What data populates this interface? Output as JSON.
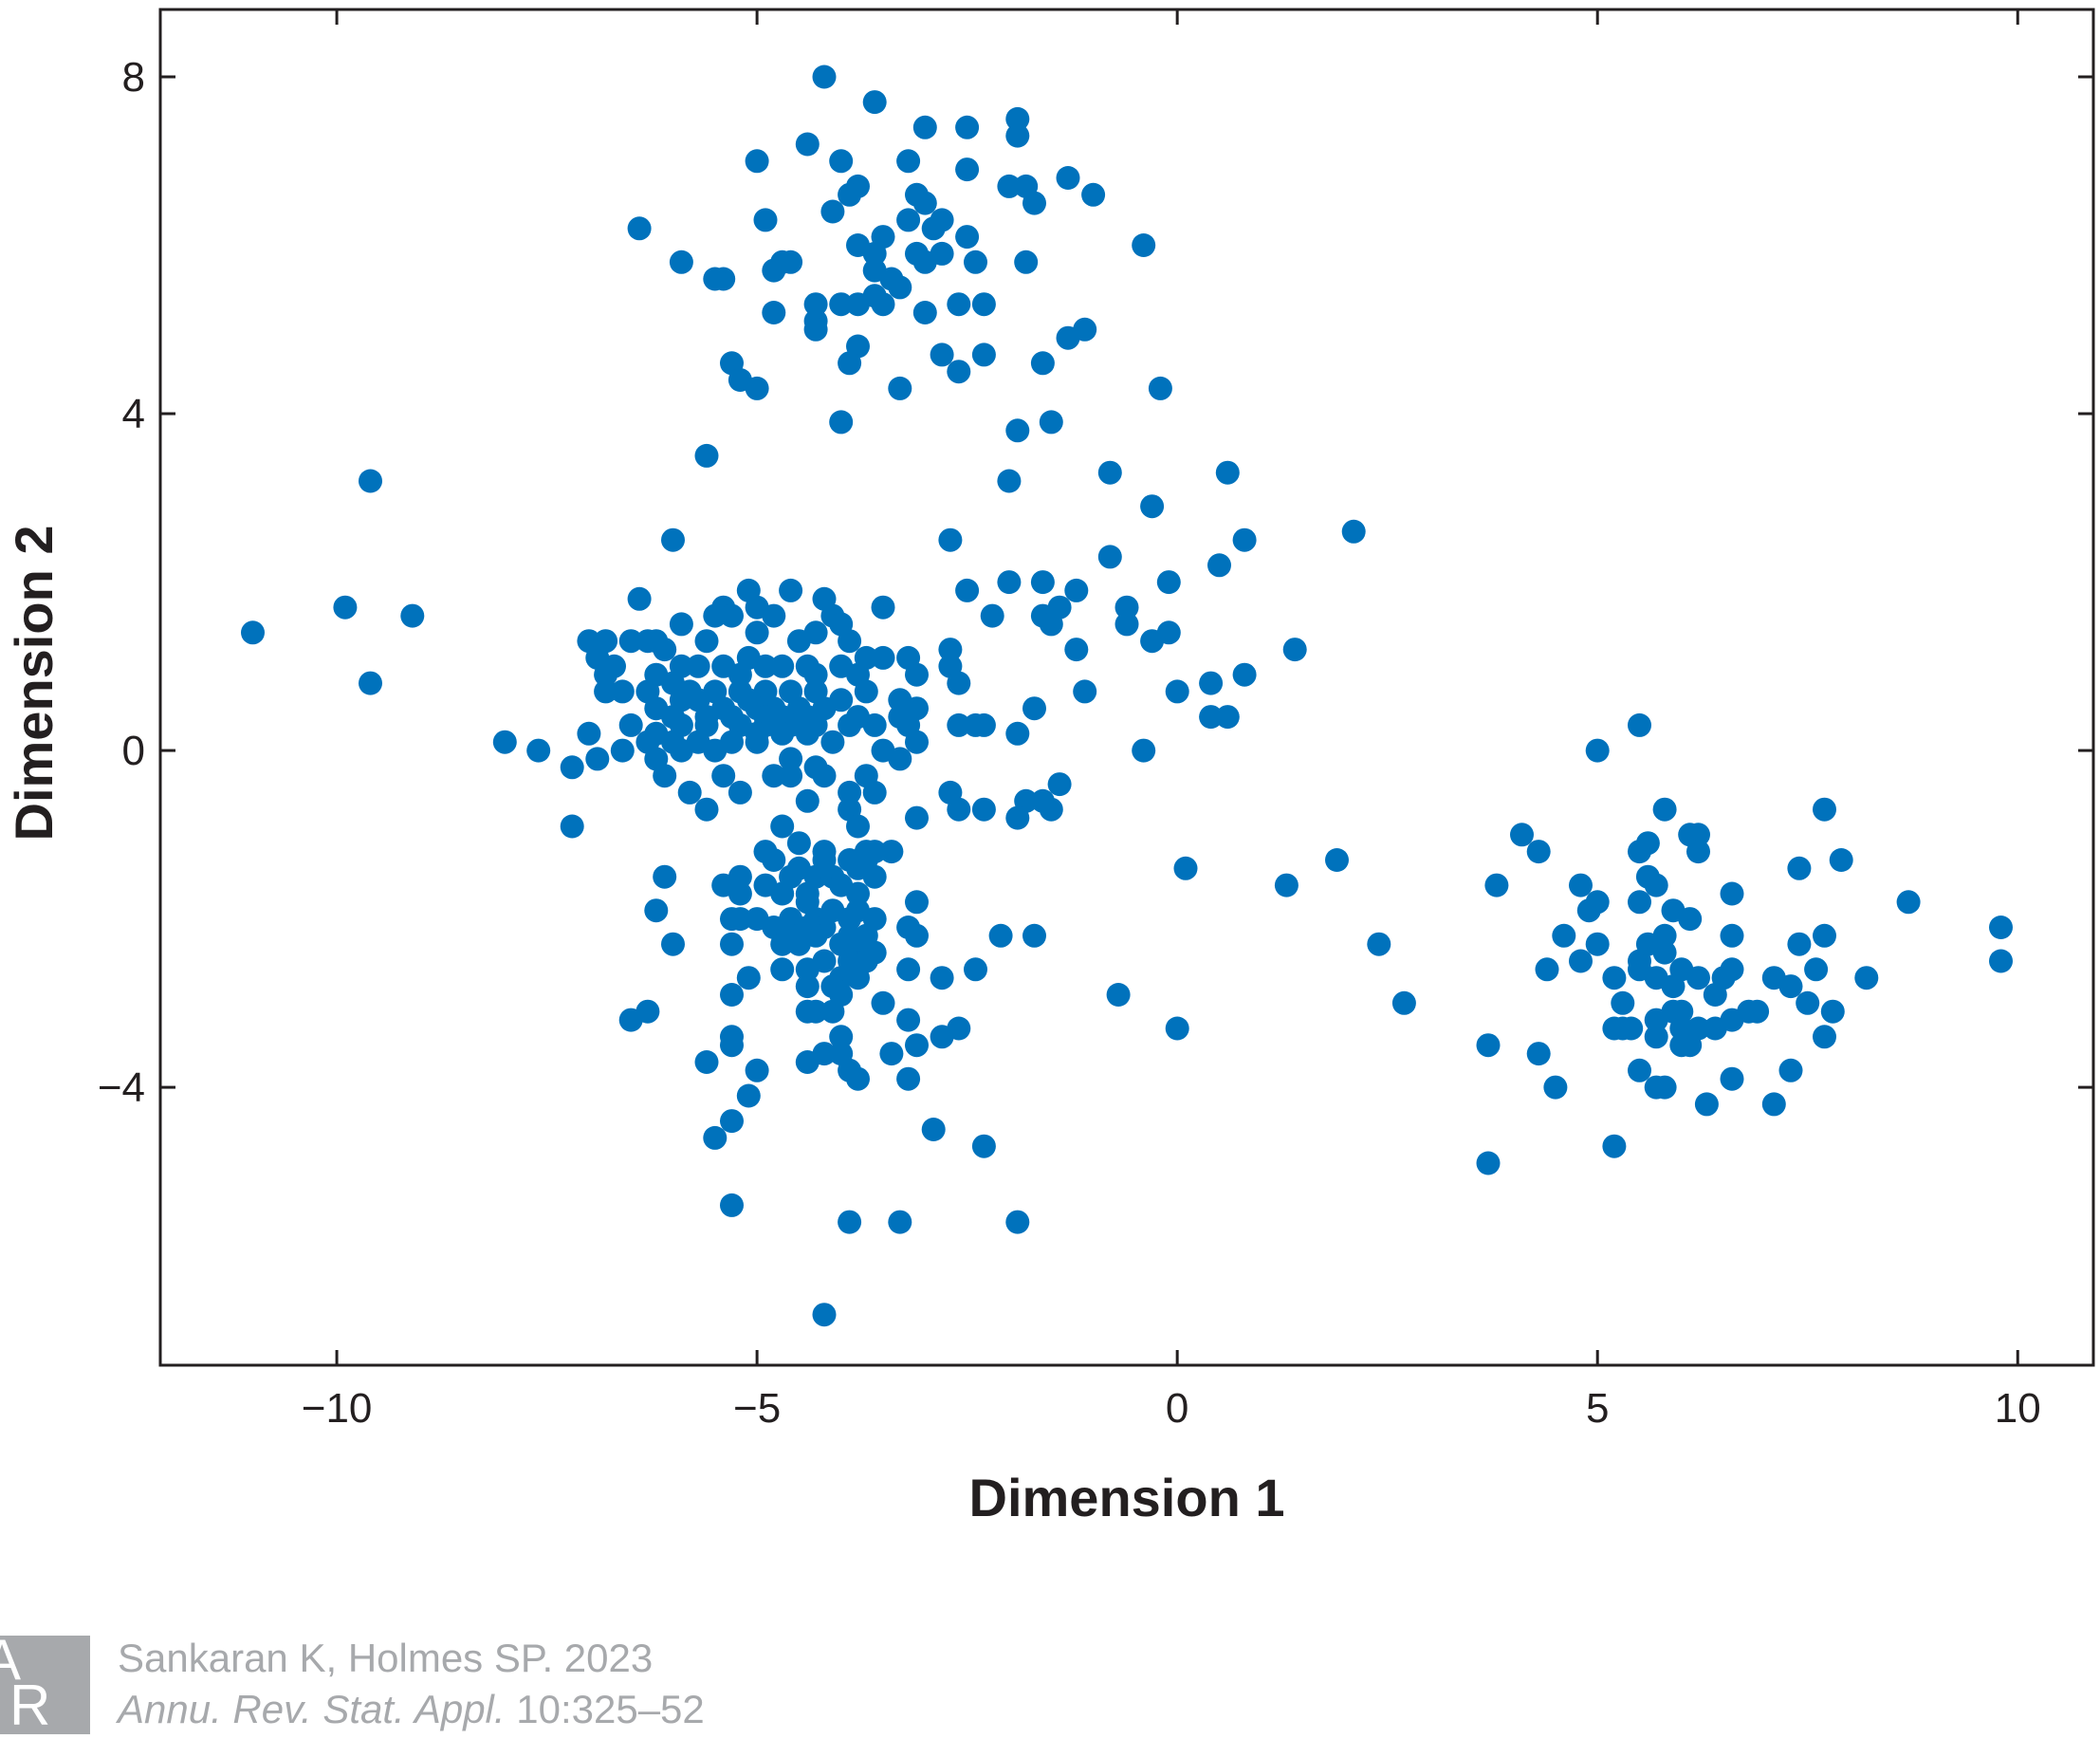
{
  "chart_data": {
    "type": "scatter",
    "title": "",
    "xlabel": "Dimension 1",
    "ylabel": "Dimension 2",
    "xlim": [
      -12.1,
      10.9
    ],
    "ylim": [
      -7.3,
      8.8
    ],
    "xticks": [
      -10,
      -5,
      0,
      5,
      10
    ],
    "yticks": [
      -4,
      0,
      4,
      8
    ],
    "xtick_labels": [
      "−10",
      "−5",
      "0",
      "5",
      "10"
    ],
    "ytick_labels": [
      "−4",
      "0",
      "4",
      "8"
    ],
    "grid": false,
    "legend": null,
    "marker_color": "#0072bc",
    "points": [
      [
        -4.2,
        8.0
      ],
      [
        -3.6,
        7.7
      ],
      [
        -3.0,
        7.4
      ],
      [
        -2.5,
        7.4
      ],
      [
        -1.9,
        7.5
      ],
      [
        -1.9,
        7.3
      ],
      [
        -4.4,
        7.2
      ],
      [
        -5.0,
        7.0
      ],
      [
        -4.0,
        7.0
      ],
      [
        -3.2,
        7.0
      ],
      [
        -2.5,
        6.9
      ],
      [
        -2.0,
        6.7
      ],
      [
        -1.8,
        6.7
      ],
      [
        -1.3,
        6.8
      ],
      [
        -1.0,
        6.6
      ],
      [
        -3.8,
        6.7
      ],
      [
        -3.9,
        6.6
      ],
      [
        -3.1,
        6.6
      ],
      [
        -3.0,
        6.5
      ],
      [
        -1.7,
        6.5
      ],
      [
        -4.1,
        6.4
      ],
      [
        -6.4,
        6.2
      ],
      [
        -4.9,
        6.3
      ],
      [
        -3.2,
        6.3
      ],
      [
        -2.8,
        6.3
      ],
      [
        -2.9,
        6.2
      ],
      [
        -2.5,
        6.1
      ],
      [
        -3.5,
        6.1
      ],
      [
        -3.8,
        6.0
      ],
      [
        -3.6,
        5.9
      ],
      [
        -3.1,
        5.9
      ],
      [
        -2.8,
        5.9
      ],
      [
        -3.0,
        5.8
      ],
      [
        -0.4,
        6.0
      ],
      [
        -5.9,
        5.8
      ],
      [
        -4.6,
        5.8
      ],
      [
        -4.7,
        5.8
      ],
      [
        -4.8,
        5.7
      ],
      [
        -3.6,
        5.7
      ],
      [
        -3.4,
        5.6
      ],
      [
        -2.4,
        5.8
      ],
      [
        -1.8,
        5.8
      ],
      [
        -5.4,
        5.6
      ],
      [
        -5.5,
        5.6
      ],
      [
        -3.3,
        5.5
      ],
      [
        -3.6,
        5.4
      ],
      [
        -4.3,
        5.3
      ],
      [
        -4.0,
        5.3
      ],
      [
        -3.8,
        5.3
      ],
      [
        -3.5,
        5.3
      ],
      [
        -2.6,
        5.3
      ],
      [
        -2.3,
        5.3
      ],
      [
        -4.8,
        5.2
      ],
      [
        -3.0,
        5.2
      ],
      [
        -4.3,
        5.1
      ],
      [
        -4.3,
        5.0
      ],
      [
        -1.3,
        4.9
      ],
      [
        -1.1,
        5.0
      ],
      [
        -3.8,
        4.8
      ],
      [
        -2.8,
        4.7
      ],
      [
        -2.3,
        4.7
      ],
      [
        -3.9,
        4.6
      ],
      [
        -5.3,
        4.6
      ],
      [
        -2.6,
        4.5
      ],
      [
        -1.6,
        4.6
      ],
      [
        -5.2,
        4.4
      ],
      [
        -5.0,
        4.3
      ],
      [
        -3.3,
        4.3
      ],
      [
        -0.2,
        4.3
      ],
      [
        -4.0,
        3.9
      ],
      [
        -1.9,
        3.8
      ],
      [
        -1.5,
        3.9
      ],
      [
        -5.6,
        3.5
      ],
      [
        -2.0,
        3.2
      ],
      [
        -0.8,
        3.3
      ],
      [
        0.6,
        3.3
      ],
      [
        -0.3,
        2.9
      ],
      [
        -9.6,
        3.2
      ],
      [
        -11.0,
        1.4
      ],
      [
        -9.9,
        1.7
      ],
      [
        -9.1,
        1.6
      ],
      [
        -9.6,
        0.8
      ],
      [
        -6.0,
        2.5
      ],
      [
        -2.7,
        2.5
      ],
      [
        -0.8,
        2.3
      ],
      [
        0.5,
        2.2
      ],
      [
        0.8,
        2.5
      ],
      [
        2.1,
        2.6
      ],
      [
        -6.4,
        1.8
      ],
      [
        -5.4,
        1.7
      ],
      [
        -5.3,
        1.6
      ],
      [
        -5.5,
        1.6
      ],
      [
        -5.1,
        1.9
      ],
      [
        -5.0,
        1.7
      ],
      [
        -4.6,
        1.9
      ],
      [
        -4.2,
        1.8
      ],
      [
        -4.1,
        1.6
      ],
      [
        -4.0,
        1.5
      ],
      [
        -3.5,
        1.7
      ],
      [
        -4.8,
        1.6
      ],
      [
        -5.9,
        1.5
      ],
      [
        -6.3,
        1.3
      ],
      [
        -6.2,
        1.3
      ],
      [
        -6.1,
        1.2
      ],
      [
        -6.5,
        1.3
      ],
      [
        -6.8,
        1.3
      ],
      [
        -7.0,
        1.3
      ],
      [
        -5.6,
        1.3
      ],
      [
        -5.0,
        1.4
      ],
      [
        -4.5,
        1.3
      ],
      [
        -4.3,
        1.4
      ],
      [
        -3.9,
        1.3
      ],
      [
        -2.7,
        1.2
      ],
      [
        -2.0,
        2.0
      ],
      [
        -1.6,
        2.0
      ],
      [
        -2.5,
        1.9
      ],
      [
        -1.2,
        1.9
      ],
      [
        -1.6,
        1.6
      ],
      [
        -1.4,
        1.7
      ],
      [
        -2.2,
        1.6
      ],
      [
        -1.5,
        1.5
      ],
      [
        -0.6,
        1.7
      ],
      [
        -0.6,
        1.5
      ],
      [
        -0.1,
        2.0
      ],
      [
        -0.3,
        1.3
      ],
      [
        -0.1,
        1.4
      ],
      [
        -1.2,
        1.2
      ],
      [
        1.4,
        1.2
      ],
      [
        -6.9,
        1.1
      ],
      [
        -6.7,
        1.0
      ],
      [
        -6.8,
        0.9
      ],
      [
        -6.2,
        0.9
      ],
      [
        -5.9,
        1.0
      ],
      [
        -5.7,
        1.0
      ],
      [
        -5.4,
        1.0
      ],
      [
        -5.1,
        1.1
      ],
      [
        -4.9,
        1.0
      ],
      [
        -4.7,
        1.0
      ],
      [
        -4.4,
        1.0
      ],
      [
        -4.0,
        1.0
      ],
      [
        -3.7,
        1.1
      ],
      [
        -3.5,
        1.1
      ],
      [
        -3.2,
        1.1
      ],
      [
        -2.7,
        1.0
      ],
      [
        -3.1,
        0.9
      ],
      [
        -2.6,
        0.8
      ],
      [
        -3.8,
        0.9
      ],
      [
        -4.3,
        0.9
      ],
      [
        -5.2,
        0.9
      ],
      [
        -6.0,
        0.8
      ],
      [
        -6.3,
        0.7
      ],
      [
        -6.6,
        0.7
      ],
      [
        -6.8,
        0.7
      ],
      [
        -5.8,
        0.7
      ],
      [
        -5.5,
        0.7
      ],
      [
        -5.2,
        0.7
      ],
      [
        -4.9,
        0.7
      ],
      [
        -4.6,
        0.7
      ],
      [
        -4.3,
        0.7
      ],
      [
        -4.0,
        0.6
      ],
      [
        -3.7,
        0.7
      ],
      [
        -3.3,
        0.6
      ],
      [
        -5.9,
        0.6
      ],
      [
        -5.7,
        0.6
      ],
      [
        -5.4,
        0.5
      ],
      [
        -5.1,
        0.6
      ],
      [
        -4.8,
        0.5
      ],
      [
        -4.5,
        0.5
      ],
      [
        -4.2,
        0.5
      ],
      [
        -3.1,
        0.5
      ],
      [
        -6.2,
        0.5
      ],
      [
        -5.0,
        0.5
      ],
      [
        -5.6,
        0.4
      ],
      [
        -4.9,
        0.4
      ],
      [
        -4.7,
        0.4
      ],
      [
        -4.4,
        0.4
      ],
      [
        -3.8,
        0.4
      ],
      [
        -3.3,
        0.4
      ],
      [
        -6.0,
        0.4
      ],
      [
        -5.3,
        0.4
      ],
      [
        -6.5,
        0.3
      ],
      [
        -6.2,
        0.2
      ],
      [
        -5.9,
        0.3
      ],
      [
        -5.6,
        0.3
      ],
      [
        -5.2,
        0.3
      ],
      [
        -4.9,
        0.3
      ],
      [
        -4.6,
        0.3
      ],
      [
        -4.3,
        0.3
      ],
      [
        -3.9,
        0.3
      ],
      [
        -3.6,
        0.3
      ],
      [
        -3.2,
        0.3
      ],
      [
        -2.6,
        0.3
      ],
      [
        -2.4,
        0.3
      ],
      [
        -2.3,
        0.3
      ],
      [
        -1.7,
        0.5
      ],
      [
        -1.1,
        0.7
      ],
      [
        0.0,
        0.7
      ],
      [
        0.4,
        0.8
      ],
      [
        0.8,
        0.9
      ],
      [
        0.4,
        0.4
      ],
      [
        0.6,
        0.4
      ],
      [
        -7.0,
        0.2
      ],
      [
        -6.6,
        0.0
      ],
      [
        -6.3,
        0.1
      ],
      [
        -6.0,
        0.1
      ],
      [
        -5.7,
        0.1
      ],
      [
        -5.3,
        0.1
      ],
      [
        -5.0,
        0.2
      ],
      [
        -4.7,
        0.2
      ],
      [
        -4.4,
        0.2
      ],
      [
        -4.1,
        0.1
      ],
      [
        -3.1,
        0.1
      ],
      [
        -1.9,
        0.2
      ],
      [
        -0.4,
        0.0
      ],
      [
        -6.9,
        -0.1
      ],
      [
        -6.2,
        -0.1
      ],
      [
        -5.9,
        0.0
      ],
      [
        -5.5,
        0.0
      ],
      [
        -5.0,
        0.1
      ],
      [
        -4.6,
        -0.1
      ],
      [
        -4.3,
        -0.2
      ],
      [
        -3.5,
        0.0
      ],
      [
        -3.3,
        -0.1
      ],
      [
        -8.0,
        0.1
      ],
      [
        -7.6,
        0.0
      ],
      [
        -7.2,
        -0.2
      ],
      [
        -6.1,
        -0.3
      ],
      [
        -5.4,
        -0.3
      ],
      [
        -4.8,
        -0.3
      ],
      [
        -4.6,
        -0.3
      ],
      [
        -4.2,
        -0.3
      ],
      [
        -3.7,
        -0.3
      ],
      [
        -5.8,
        -0.5
      ],
      [
        -5.2,
        -0.5
      ],
      [
        -3.9,
        -0.5
      ],
      [
        -3.6,
        -0.5
      ],
      [
        -2.7,
        -0.5
      ],
      [
        -1.4,
        -0.4
      ],
      [
        -5.6,
        -0.7
      ],
      [
        -4.4,
        -0.6
      ],
      [
        -3.9,
        -0.7
      ],
      [
        -2.6,
        -0.7
      ],
      [
        -2.3,
        -0.7
      ],
      [
        -1.8,
        -0.6
      ],
      [
        -1.6,
        -0.6
      ],
      [
        -1.5,
        -0.7
      ],
      [
        -7.2,
        -0.9
      ],
      [
        -4.7,
        -0.9
      ],
      [
        -3.8,
        -0.9
      ],
      [
        -3.1,
        -0.8
      ],
      [
        -1.9,
        -0.8
      ],
      [
        -4.5,
        -1.1
      ],
      [
        -4.2,
        -1.2
      ],
      [
        -3.7,
        -1.2
      ],
      [
        -3.6,
        -1.2
      ],
      [
        -3.4,
        -1.2
      ],
      [
        -4.9,
        -1.2
      ],
      [
        -4.8,
        -1.3
      ],
      [
        -4.2,
        -1.3
      ],
      [
        -3.9,
        -1.3
      ],
      [
        -3.7,
        -1.3
      ],
      [
        -4.5,
        -1.4
      ],
      [
        -3.8,
        -1.4
      ],
      [
        -6.1,
        -1.5
      ],
      [
        -5.2,
        -1.5
      ],
      [
        -4.9,
        -1.6
      ],
      [
        -4.6,
        -1.5
      ],
      [
        -4.3,
        -1.5
      ],
      [
        -4.1,
        -1.5
      ],
      [
        -3.6,
        -1.5
      ],
      [
        -5.4,
        -1.6
      ],
      [
        -5.2,
        -1.7
      ],
      [
        -4.7,
        -1.7
      ],
      [
        -4.4,
        -1.7
      ],
      [
        -4.0,
        -1.6
      ],
      [
        -3.8,
        -1.7
      ],
      [
        0.1,
        -1.4
      ],
      [
        1.3,
        -1.6
      ],
      [
        1.9,
        -1.3
      ],
      [
        -6.2,
        -1.9
      ],
      [
        -4.4,
        -1.8
      ],
      [
        -4.1,
        -1.9
      ],
      [
        -3.8,
        -1.9
      ],
      [
        -3.1,
        -1.8
      ],
      [
        -4.6,
        -2.0
      ],
      [
        -4.3,
        -2.0
      ],
      [
        -3.9,
        -2.0
      ],
      [
        -5.3,
        -2.0
      ],
      [
        -5.2,
        -2.0
      ],
      [
        -5.0,
        -2.0
      ],
      [
        -4.8,
        -2.1
      ],
      [
        -4.4,
        -2.1
      ],
      [
        -4.2,
        -2.1
      ],
      [
        -3.6,
        -2.0
      ],
      [
        -3.2,
        -2.1
      ],
      [
        -4.6,
        -2.2
      ],
      [
        -4.3,
        -2.2
      ],
      [
        -3.9,
        -2.2
      ],
      [
        -3.7,
        -2.2
      ],
      [
        -3.1,
        -2.2
      ],
      [
        -2.1,
        -2.2
      ],
      [
        -1.7,
        -2.2
      ],
      [
        -6.0,
        -2.3
      ],
      [
        -5.3,
        -2.3
      ],
      [
        -4.7,
        -2.3
      ],
      [
        -4.5,
        -2.3
      ],
      [
        -4.0,
        -2.3
      ],
      [
        -3.8,
        -2.3
      ],
      [
        -3.6,
        -2.4
      ],
      [
        -3.7,
        -2.5
      ],
      [
        -3.9,
        -2.5
      ],
      [
        -4.2,
        -2.5
      ],
      [
        -4.4,
        -2.6
      ],
      [
        -4.7,
        -2.6
      ],
      [
        -4.0,
        -2.7
      ],
      [
        -3.8,
        -2.7
      ],
      [
        -3.2,
        -2.6
      ],
      [
        -2.4,
        -2.6
      ],
      [
        -2.8,
        -2.7
      ],
      [
        -4.1,
        -2.8
      ],
      [
        -4.4,
        -2.8
      ],
      [
        -5.1,
        -2.7
      ],
      [
        -4.0,
        -2.9
      ],
      [
        -5.3,
        -2.9
      ],
      [
        -3.5,
        -3.0
      ],
      [
        -4.3,
        -3.1
      ],
      [
        -4.1,
        -3.1
      ],
      [
        -4.4,
        -3.1
      ],
      [
        -3.2,
        -3.2
      ],
      [
        -6.5,
        -3.2
      ],
      [
        -6.3,
        -3.1
      ],
      [
        -5.3,
        -3.4
      ],
      [
        -5.3,
        -3.5
      ],
      [
        -4.0,
        -3.4
      ],
      [
        -2.8,
        -3.4
      ],
      [
        -2.6,
        -3.3
      ],
      [
        -4.0,
        -3.6
      ],
      [
        -3.1,
        -3.5
      ],
      [
        -3.4,
        -3.6
      ],
      [
        -5.6,
        -3.7
      ],
      [
        -4.4,
        -3.7
      ],
      [
        -3.9,
        -3.8
      ],
      [
        -5.0,
        -3.8
      ],
      [
        -4.2,
        -3.6
      ],
      [
        -3.8,
        -3.9
      ],
      [
        -3.2,
        -3.9
      ],
      [
        -5.1,
        -4.1
      ],
      [
        -5.3,
        -4.4
      ],
      [
        -5.5,
        -4.6
      ],
      [
        -2.9,
        -4.5
      ],
      [
        -2.3,
        -4.7
      ],
      [
        -5.3,
        -5.4
      ],
      [
        -3.9,
        -5.6
      ],
      [
        -3.3,
        -5.6
      ],
      [
        -1.9,
        -5.6
      ],
      [
        -4.2,
        -6.7
      ],
      [
        -0.7,
        -2.9
      ],
      [
        0.0,
        -3.3
      ],
      [
        2.4,
        -2.3
      ],
      [
        2.7,
        -3.0
      ],
      [
        5.5,
        0.3
      ],
      [
        5.0,
        0.0
      ],
      [
        4.1,
        -1.0
      ],
      [
        4.3,
        -1.2
      ],
      [
        3.8,
        -1.6
      ],
      [
        5.8,
        -0.7
      ],
      [
        6.1,
        -1.0
      ],
      [
        6.2,
        -1.0
      ],
      [
        5.6,
        -1.1
      ],
      [
        5.5,
        -1.2
      ],
      [
        6.2,
        -1.2
      ],
      [
        7.7,
        -0.7
      ],
      [
        7.4,
        -1.4
      ],
      [
        7.9,
        -1.3
      ],
      [
        4.8,
        -1.6
      ],
      [
        5.6,
        -1.5
      ],
      [
        5.7,
        -1.6
      ],
      [
        6.6,
        -1.7
      ],
      [
        5.0,
        -1.8
      ],
      [
        5.5,
        -1.8
      ],
      [
        5.9,
        -1.9
      ],
      [
        6.1,
        -2.0
      ],
      [
        8.7,
        -1.8
      ],
      [
        4.9,
        -1.9
      ],
      [
        4.6,
        -2.2
      ],
      [
        5.0,
        -2.3
      ],
      [
        5.8,
        -2.2
      ],
      [
        6.6,
        -2.2
      ],
      [
        7.4,
        -2.3
      ],
      [
        7.7,
        -2.2
      ],
      [
        9.8,
        -2.1
      ],
      [
        4.4,
        -2.6
      ],
      [
        4.8,
        -2.5
      ],
      [
        5.2,
        -2.7
      ],
      [
        5.5,
        -2.5
      ],
      [
        5.6,
        -2.3
      ],
      [
        5.8,
        -2.4
      ],
      [
        6.0,
        -2.6
      ],
      [
        6.2,
        -2.7
      ],
      [
        6.6,
        -2.6
      ],
      [
        6.5,
        -2.7
      ],
      [
        5.7,
        -2.7
      ],
      [
        5.5,
        -2.6
      ],
      [
        5.9,
        -2.8
      ],
      [
        7.1,
        -2.7
      ],
      [
        7.3,
        -2.8
      ],
      [
        7.6,
        -2.6
      ],
      [
        8.2,
        -2.7
      ],
      [
        9.8,
        -2.5
      ],
      [
        5.3,
        -3.0
      ],
      [
        5.9,
        -3.1
      ],
      [
        5.7,
        -3.2
      ],
      [
        6.0,
        -3.1
      ],
      [
        6.4,
        -2.9
      ],
      [
        6.8,
        -3.1
      ],
      [
        6.9,
        -3.1
      ],
      [
        7.5,
        -3.0
      ],
      [
        7.8,
        -3.1
      ],
      [
        5.3,
        -3.3
      ],
      [
        5.4,
        -3.3
      ],
      [
        5.7,
        -3.4
      ],
      [
        6.0,
        -3.3
      ],
      [
        6.2,
        -3.3
      ],
      [
        6.4,
        -3.3
      ],
      [
        6.6,
        -3.2
      ],
      [
        5.2,
        -3.3
      ],
      [
        6.0,
        -3.5
      ],
      [
        6.1,
        -3.5
      ],
      [
        7.7,
        -3.4
      ],
      [
        3.7,
        -3.5
      ],
      [
        4.3,
        -3.6
      ],
      [
        5.5,
        -3.8
      ],
      [
        5.7,
        -4.0
      ],
      [
        5.8,
        -4.0
      ],
      [
        6.6,
        -3.9
      ],
      [
        7.3,
        -3.8
      ],
      [
        4.5,
        -4.0
      ],
      [
        6.3,
        -4.2
      ],
      [
        7.1,
        -4.2
      ],
      [
        5.2,
        -4.7
      ],
      [
        3.7,
        -4.9
      ]
    ]
  },
  "credit": {
    "logo_letters": [
      "A",
      "R"
    ],
    "line1": "Sankaran K, Holmes SP. 2023",
    "journal": "Annu. Rev. Stat. Appl.",
    "citation": " 10:325–52"
  }
}
